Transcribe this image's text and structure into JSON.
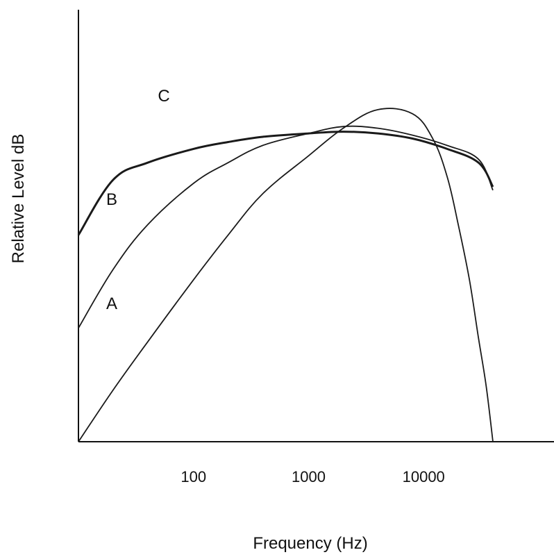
{
  "chart_data": {
    "type": "line",
    "xlabel": "Frequency (Hz)",
    "ylabel": "Relative Level dB",
    "x_scale": "log",
    "x_ticks": [
      {
        "label": "100",
        "value": 100
      },
      {
        "label": "1000",
        "value": 1000
      },
      {
        "label": "10000",
        "value": 10000
      }
    ],
    "xlim": [
      10,
      50000
    ],
    "ylim": [
      0,
      1
    ],
    "grid": false,
    "legend": "none",
    "series": [
      {
        "name": "A",
        "x": [
          10,
          20,
          40,
          100,
          200,
          400,
          1000,
          2000,
          4000,
          8000,
          12000,
          16000,
          20000,
          25000,
          30000,
          35000,
          40000
        ],
        "y": [
          0.0,
          0.15,
          0.29,
          0.47,
          0.6,
          0.72,
          0.83,
          0.91,
          0.964,
          0.952,
          0.88,
          0.77,
          0.63,
          0.47,
          0.3,
          0.16,
          0.0
        ]
      },
      {
        "name": "B",
        "x": [
          10,
          20,
          40,
          100,
          200,
          400,
          1000,
          2000,
          4000,
          8000,
          16000,
          30000,
          40000
        ],
        "y": [
          0.33,
          0.5,
          0.63,
          0.75,
          0.81,
          0.86,
          0.895,
          0.915,
          0.91,
          0.89,
          0.86,
          0.82,
          0.73
        ]
      },
      {
        "name": "C",
        "x": [
          10,
          20,
          40,
          100,
          200,
          400,
          1000,
          2000,
          4000,
          8000,
          16000,
          30000,
          40000
        ],
        "y": [
          0.6,
          0.76,
          0.81,
          0.85,
          0.87,
          0.885,
          0.895,
          0.9,
          0.895,
          0.88,
          0.85,
          0.81,
          0.74
        ]
      }
    ],
    "annotations": [
      {
        "text": "C",
        "series": "C"
      },
      {
        "text": "B",
        "series": "B"
      },
      {
        "text": "A",
        "series": "A"
      }
    ]
  }
}
